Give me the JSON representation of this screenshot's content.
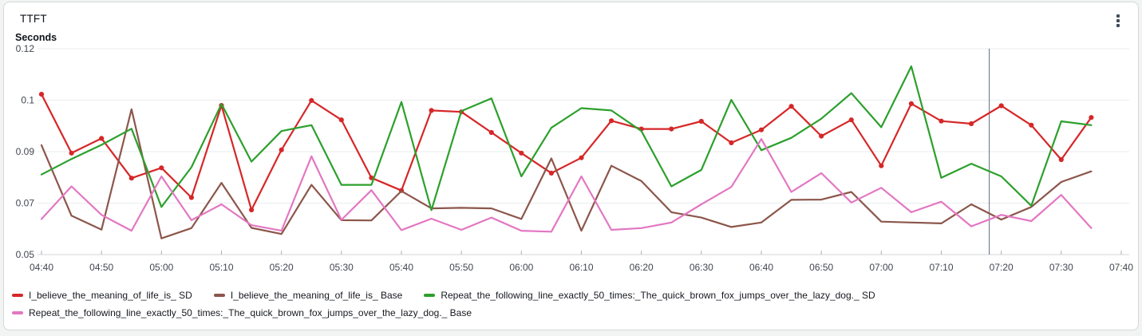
{
  "page": {
    "background": "#f2f3f3"
  },
  "card": {
    "title": "TTFT",
    "background": "#ffffff",
    "border_color": "#d5d9d9",
    "menu_icon": "kebab-menu-icon"
  },
  "chart_data": {
    "type": "line",
    "title": "TTFT",
    "ylabel": "Seconds",
    "xlabel": "",
    "ylim": [
      0.05,
      0.12
    ],
    "grid": "horizontal",
    "legend_position": "bottom",
    "y_ticks": [
      {
        "value": 0.12,
        "label": "0.12"
      },
      {
        "value": 0.1025,
        "label": "0.1"
      },
      {
        "value": 0.085,
        "label": "0.09"
      },
      {
        "value": 0.0675,
        "label": "0.07"
      },
      {
        "value": 0.05,
        "label": "0.05"
      }
    ],
    "x_tick_labels": [
      "04:40",
      "04:50",
      "05:00",
      "05:10",
      "05:20",
      "05:30",
      "05:40",
      "05:50",
      "06:00",
      "06:10",
      "06:20",
      "06:30",
      "06:40",
      "06:50",
      "07:00",
      "07:10",
      "07:20",
      "07:30",
      "07:40"
    ],
    "x_minutes_span": 180,
    "x_times": [
      "04:40",
      "04:45",
      "04:50",
      "04:55",
      "05:00",
      "05:05",
      "05:10",
      "05:15",
      "05:20",
      "05:25",
      "05:30",
      "05:35",
      "05:40",
      "05:45",
      "05:50",
      "05:55",
      "06:00",
      "06:05",
      "06:10",
      "06:15",
      "06:20",
      "06:25",
      "06:30",
      "06:35",
      "06:40",
      "06:45",
      "06:50",
      "06:55",
      "07:00",
      "07:05",
      "07:10",
      "07:15",
      "07:20",
      "07:25",
      "07:30",
      "07:35"
    ],
    "series": [
      {
        "name": "I_believe_the_meaning_of_life_is_ SD",
        "color": "#d62728",
        "markers": true,
        "values": [
          0.1045,
          0.0845,
          0.0895,
          0.076,
          0.0795,
          0.0694,
          0.1007,
          0.0652,
          0.0856,
          0.1024,
          0.0958,
          0.0761,
          0.0718,
          0.099,
          0.0985,
          0.0915,
          0.0845,
          0.0777,
          0.0829,
          0.0955,
          0.0927,
          0.0927,
          0.0953,
          0.088,
          0.0924,
          0.1004,
          0.0903,
          0.0958,
          0.0802,
          0.1013,
          0.0954,
          0.0945,
          0.1006,
          0.094,
          0.0823,
          0.0966
        ]
      },
      {
        "name": "I_believe_the_meaning_of_life_is_ Base",
        "color": "#8c564b",
        "markers": false,
        "values": [
          0.0872,
          0.0632,
          0.0585,
          0.0994,
          0.0555,
          0.059,
          0.0744,
          0.0591,
          0.057,
          0.0737,
          0.0617,
          0.0616,
          0.0716,
          0.0657,
          0.0659,
          0.0657,
          0.0621,
          0.0827,
          0.0581,
          0.0802,
          0.075,
          0.0644,
          0.0626,
          0.0594,
          0.0609,
          0.0686,
          0.0687,
          0.0713,
          0.0612,
          0.0609,
          0.0606,
          0.0671,
          0.0619,
          0.0662,
          0.0747,
          0.0783
        ]
      },
      {
        "name": "Repeat_the_following_line_exactly_50_times:_The_quick_brown_fox_jumps_over_the_lazy_dog._ SD",
        "color": "#2ca02c",
        "markers": false,
        "values": [
          0.0772,
          0.0825,
          0.0873,
          0.0928,
          0.0662,
          0.0797,
          0.1012,
          0.0816,
          0.092,
          0.094,
          0.0737,
          0.0737,
          0.1019,
          0.0651,
          0.0988,
          0.1031,
          0.0766,
          0.0931,
          0.0998,
          0.099,
          0.092,
          0.0732,
          0.0788,
          0.1026,
          0.0855,
          0.0897,
          0.0962,
          0.1049,
          0.0933,
          0.114,
          0.0761,
          0.0809,
          0.0766,
          0.0666,
          0.0953,
          0.094
        ]
      },
      {
        "name": "Repeat_the_following_line_exactly_50_times:_The_quick_brown_fox_jumps_over_the_lazy_dog._ Base",
        "color": "#e377c2",
        "markers": false,
        "values": [
          0.0621,
          0.0732,
          0.0635,
          0.0581,
          0.0766,
          0.0617,
          0.0671,
          0.06,
          0.0581,
          0.0834,
          0.0618,
          0.0719,
          0.0583,
          0.0622,
          0.0584,
          0.0626,
          0.0581,
          0.0578,
          0.0766,
          0.0584,
          0.059,
          0.0609,
          0.0671,
          0.073,
          0.0893,
          0.0713,
          0.0777,
          0.0677,
          0.0727,
          0.0644,
          0.068,
          0.0596,
          0.0635,
          0.0614,
          0.0703,
          0.059
        ]
      }
    ],
    "annotation_vline": {
      "time": "07:18",
      "color": "#5f6b7a"
    },
    "style": {
      "grid_color": "#e9ebed",
      "axis_line_color": "#d4d7db",
      "tick_color": "#a9b1b8",
      "axis_label_color": "#424650"
    }
  }
}
